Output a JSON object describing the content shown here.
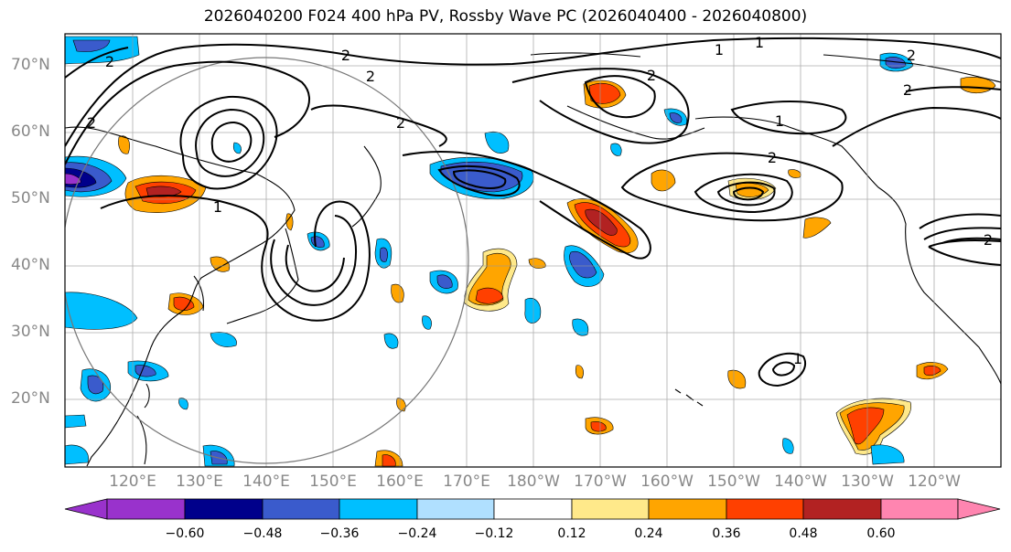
{
  "title": "2026040200 F024 400 hPa PV, Rossby Wave PC (2026040400 - 2026040800)",
  "lat_labels": [
    "70°N",
    "60°N",
    "50°N",
    "40°N",
    "30°N",
    "20°N"
  ],
  "lon_labels": [
    "120°E",
    "130°E",
    "140°E",
    "150°E",
    "160°E",
    "170°E",
    "180°W",
    "170°W",
    "160°W",
    "150°W",
    "140°W",
    "130°W",
    "120°W"
  ],
  "contour_labels": [
    "1",
    "1",
    "2",
    "2",
    "2",
    "2",
    "2",
    "2",
    "2",
    "2",
    "1",
    "2",
    "1",
    "2",
    "1"
  ],
  "colorbar": {
    "ticks": [
      "−0.60",
      "−0.48",
      "−0.36",
      "−0.24",
      "−0.12",
      "0.12",
      "0.24",
      "0.36",
      "0.48",
      "0.60"
    ],
    "colors": [
      "#9932cc",
      "#00008b",
      "#3a5bcc",
      "#00bfff",
      "#b0e0ff",
      "#ffffff",
      "#ffe98a",
      "#ffa500",
      "#ff4000",
      "#b22222",
      "#ff85b0"
    ]
  }
}
